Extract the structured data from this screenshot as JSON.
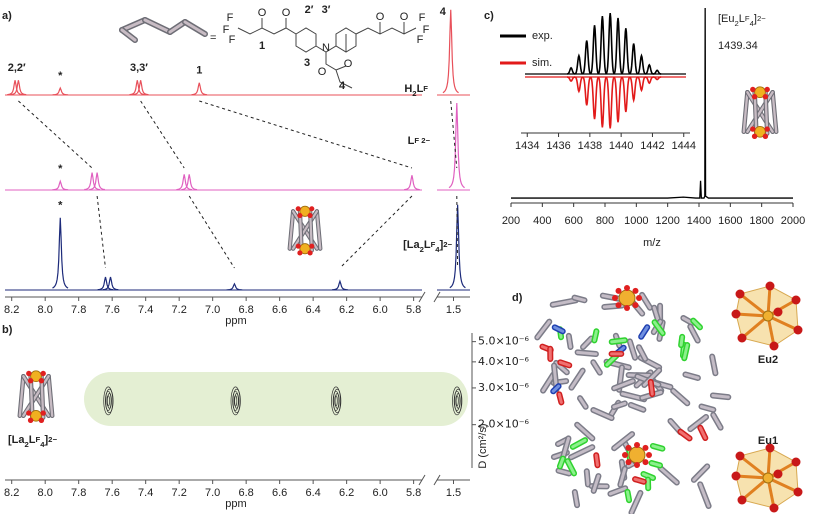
{
  "chart_data": [
    {
      "type": "nmr",
      "label": "a)",
      "xlabel": "ppm",
      "xlim": [
        8.24,
        5.75
      ],
      "x2lim": [
        1.62,
        1.38
      ],
      "xticks": [
        8.2,
        {
          "value": 8,
          "label": "8.0"
        },
        7.8,
        7.6,
        7.4,
        7.2,
        {
          "value": 7,
          "label": "7.0"
        },
        6.8,
        6.6,
        6.4,
        6.2,
        {
          "value": 6,
          "label": "6.0"
        },
        5.8
      ],
      "x2ticks": [
        1.5
      ],
      "series": [
        {
          "name": [
            {
              "t": "H"
            },
            {
              "t": "2",
              "s": "sub"
            },
            {
              "t": "L"
            },
            {
              "t": "F",
              "s": "sup"
            }
          ],
          "color": "#e8505a",
          "x": [
            8.18,
            8.16,
            7.91,
            7.45,
            7.43,
            7.08,
            1.52
          ],
          "values": [
            0.17,
            0.17,
            0.08,
            0.17,
            0.17,
            0.14,
            0.98
          ],
          "peak_labels": [
            "2,2′",
            null,
            "*",
            "3,3′",
            null,
            "1",
            "4"
          ],
          "peak_label_colors": [
            "#2e9e45",
            null,
            "#111111",
            "#2e9e45",
            null,
            "#a0202a",
            "#e02a2a"
          ]
        },
        {
          "name": [
            {
              "t": "L"
            },
            {
              "t": "F 2−",
              "s": "sup"
            }
          ],
          "color": "#e060c0",
          "x": [
            7.91,
            7.72,
            7.69,
            7.17,
            7.14,
            5.81,
            1.476
          ],
          "values": [
            0.1,
            0.2,
            0.2,
            0.18,
            0.18,
            0.17,
            1.0
          ],
          "peak_labels": [
            "*",
            null,
            null,
            null,
            null,
            null,
            null
          ]
        },
        {
          "name": [
            {
              "t": "[La"
            },
            {
              "t": "2",
              "s": "sub"
            },
            {
              "t": "L"
            },
            {
              "t": "F",
              "s": "sup"
            },
            {
              "t": "4",
              "s": "sub"
            },
            {
              "t": "]"
            },
            {
              "t": "2−",
              "s": "sup"
            }
          ],
          "color": "#1c2a7a",
          "x": [
            7.91,
            7.64,
            7.61,
            6.87,
            6.24,
            1.47
          ],
          "values": [
            0.83,
            0.15,
            0.15,
            0.07,
            0.1,
            0.98
          ],
          "peak_labels": [
            "*",
            null,
            null,
            null,
            null,
            null
          ]
        }
      ],
      "scheme": {
        "equals": "=",
        "atoms": [
          "F",
          "F",
          "F",
          "O",
          "O",
          "N",
          "O",
          "O",
          "O",
          "O",
          "F",
          "F",
          "F"
        ],
        "locants": [
          {
            "t": "2′",
            "color": "#2e9e45"
          },
          {
            "t": "3′",
            "color": "#2e9e45"
          },
          {
            "t": "1",
            "color": "#a0202a"
          },
          {
            "t": "3",
            "color": "#2e9e45"
          },
          {
            "t": "4",
            "color": "#a0202a"
          }
        ]
      }
    },
    {
      "type": "dosy",
      "label": "b)",
      "xlabel": "ppm",
      "ylabel": "D (cm²/s)",
      "ylog": true,
      "xlim": [
        8.24,
        5.75
      ],
      "x2lim": [
        1.62,
        1.38
      ],
      "xticks": [
        8.2,
        {
          "value": 8,
          "label": "8.0"
        },
        7.8,
        7.6,
        7.4,
        7.2,
        {
          "value": 7,
          "label": "7.0"
        },
        6.8,
        6.6,
        6.4,
        6.2,
        {
          "value": 6,
          "label": "6.0"
        },
        5.8
      ],
      "x2ticks": [
        1.5
      ],
      "ylim": [
        1.24e-06,
        5.5e-06
      ],
      "yticks": [
        {
          "value": 5e-06,
          "label": "5.0×10⁻⁶"
        },
        {
          "value": 4e-06,
          "label": "4.0×10⁻⁶"
        },
        {
          "value": 3e-06,
          "label": "3.0×10⁻⁶"
        },
        {
          "value": 2e-06,
          "label": "2.0×10⁻⁶"
        }
      ],
      "series": [
        {
          "name": [
            {
              "t": "[La"
            },
            {
              "t": "2",
              "s": "sub"
            },
            {
              "t": "L"
            },
            {
              "t": "F",
              "s": "sup"
            },
            {
              "t": "4",
              "s": "sub"
            },
            {
              "t": "]"
            },
            {
              "t": "2−",
              "s": "sup"
            }
          ],
          "color": "#222222",
          "x": [
            7.62,
            6.86,
            6.26,
            1.47
          ],
          "values": [
            2.6e-06,
            2.6e-06,
            2.6e-06,
            2.6e-06
          ]
        }
      ]
    },
    {
      "type": "line",
      "label": "c)",
      "xlabel": "m/z",
      "xlim": [
        200,
        2000
      ],
      "xticks": [
        200,
        400,
        600,
        800,
        1000,
        1200,
        1400,
        1600,
        1800,
        2000
      ],
      "ylim": [
        0,
        100
      ],
      "series": [
        {
          "color": "#000000",
          "x": [
            200,
            400,
            600,
            800,
            1000,
            1200,
            1300,
            1380,
            1405,
            1410,
            1415,
            1432,
            1437,
            1439.34,
            1442,
            1460,
            1600,
            1800,
            2000
          ],
          "values": [
            1,
            1,
            1,
            1,
            1,
            1,
            1.5,
            1,
            1,
            10,
            1,
            1,
            2,
            100,
            2,
            1,
            1,
            1,
            1
          ]
        }
      ],
      "annotation": {
        "name": [
          {
            "t": "[Eu"
          },
          {
            "t": "2",
            "s": "sub"
          },
          {
            "t": "L"
          },
          {
            "t": "F",
            "s": "sup"
          },
          {
            "t": "4",
            "s": "sub"
          },
          {
            "t": "]"
          },
          {
            "t": "2−",
            "s": "sup"
          }
        ],
        "value": 1439.34
      }
    },
    {
      "type": "isotope",
      "xlim": [
        1433.6,
        1444.4
      ],
      "xticks": [
        1434,
        1436,
        1438,
        1440,
        1442,
        1444
      ],
      "ylim": [
        0,
        1.05
      ],
      "series": [
        {
          "name": "exp.",
          "color": "#000000",
          "x": [
            1436.8,
            1437.3,
            1437.8,
            1438.3,
            1438.8,
            1439.3,
            1439.8,
            1440.3,
            1440.8,
            1441.3,
            1441.8,
            1442.3
          ],
          "values": [
            0.1,
            0.3,
            0.55,
            0.8,
            0.95,
            1.0,
            0.92,
            0.75,
            0.5,
            0.3,
            0.15,
            0.06
          ]
        },
        {
          "name": "sim.",
          "color": "#e21a1a",
          "inverted": true,
          "x": [
            1436.8,
            1437.3,
            1437.8,
            1438.3,
            1438.8,
            1439.3,
            1439.8,
            1440.3,
            1440.8,
            1441.3,
            1441.8,
            1442.3
          ],
          "values": [
            0.08,
            0.28,
            0.55,
            0.82,
            0.98,
            1.0,
            0.88,
            0.68,
            0.45,
            0.26,
            0.12,
            0.05
          ]
        }
      ]
    }
  ],
  "structure": {
    "label": "d)",
    "sites": [
      "Eu2",
      "Eu1"
    ]
  }
}
